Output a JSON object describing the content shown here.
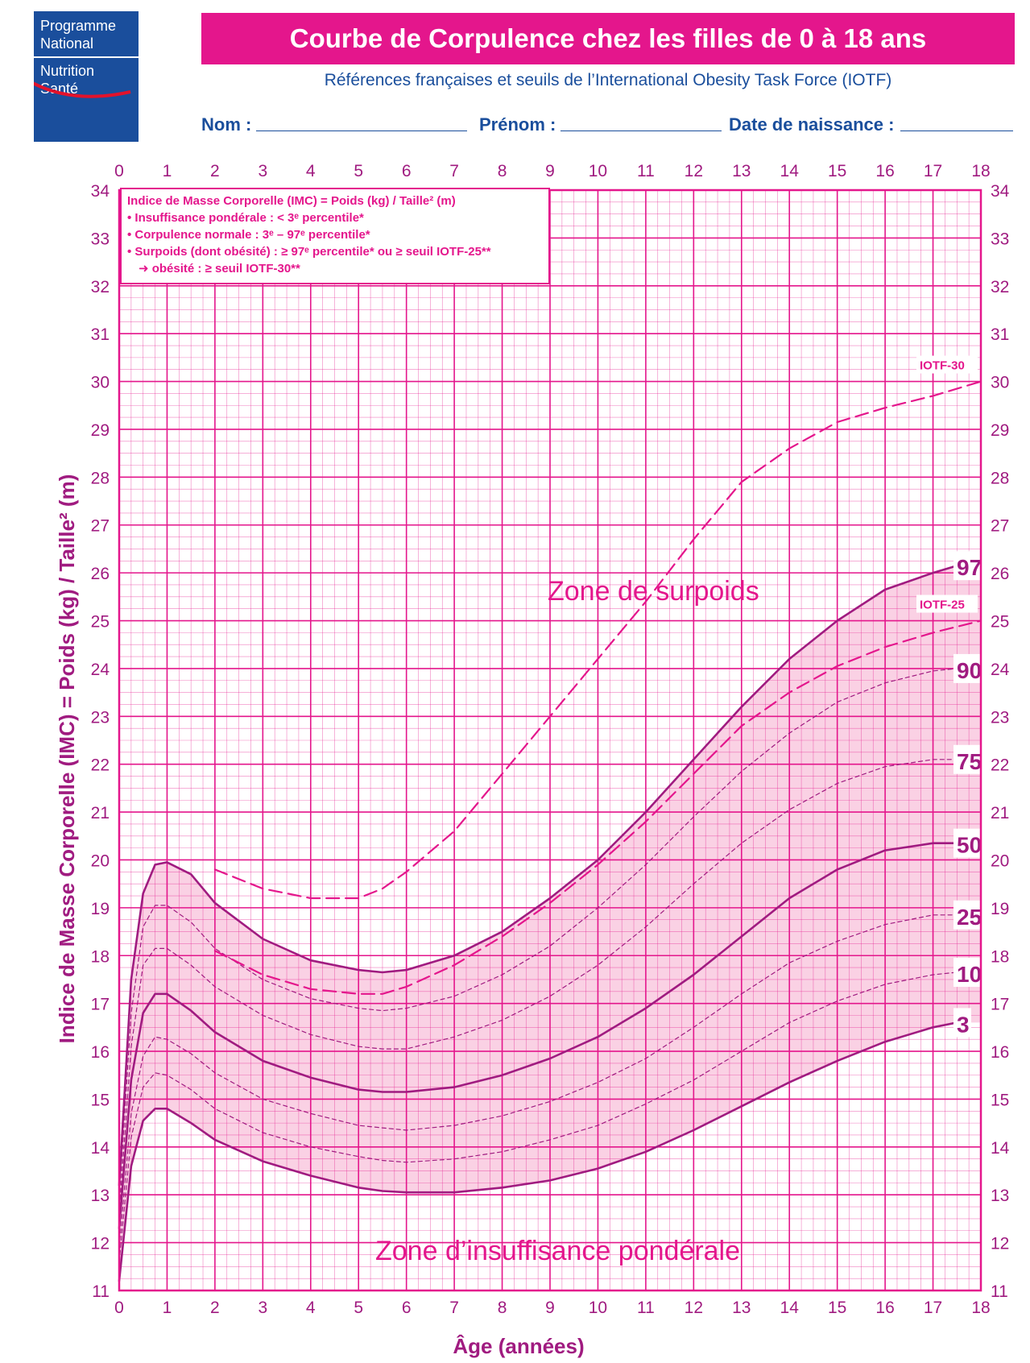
{
  "logo": {
    "line1": "Programme",
    "line2": "National",
    "line3": "Nutrition",
    "line4": "Santé"
  },
  "header": {
    "title": "Courbe de Corpulence chez les filles de 0 à 18 ans",
    "subtitle": "Références françaises et seuils de l’International Obesity Task Force (IOTF)"
  },
  "form": {
    "nom_label": "Nom :",
    "prenom_label": "Prénom :",
    "naissance_label": "Date de naissance :"
  },
  "colors": {
    "pink": "#e4168c",
    "purple": "#a01b80",
    "fill": "#f9c9df",
    "navy": "#1a4e9c"
  },
  "chart_data": {
    "type": "line",
    "ylabel": "Indice de Masse Corporelle (IMC) = Poids (kg) / Taille² (m)",
    "xlabel": "Âge (années)",
    "xlim": [
      0,
      18
    ],
    "ylim": [
      11,
      34
    ],
    "x_ticks": [
      0,
      1,
      2,
      3,
      4,
      5,
      6,
      7,
      8,
      9,
      10,
      11,
      12,
      13,
      14,
      15,
      16,
      17,
      18
    ],
    "y_ticks": [
      11,
      12,
      13,
      14,
      15,
      16,
      17,
      18,
      19,
      20,
      21,
      22,
      23,
      24,
      25,
      26,
      27,
      28,
      29,
      30,
      31,
      32,
      33,
      34
    ],
    "grid": true,
    "legend_box": {
      "line1": "Indice de Masse Corporelle (IMC) = Poids (kg) / Taille² (m)",
      "line2": "• Insuffisance pondérale : < 3ᵉ percentile*",
      "line3": "• Corpulence normale : 3ᵉ – 97ᵉ percentile*",
      "line4": "• Surpoids (dont obésité) : ≥ 97ᵉ percentile* ou ≥ seuil IOTF-25**",
      "line5": "➜ obésité : ≥ seuil IOTF-30**"
    },
    "annotations": {
      "surpoids": "Zone de surpoids",
      "insuffisance": "Zone d’insuffisance pondérale"
    },
    "x": [
      0,
      0.25,
      0.5,
      0.75,
      1,
      1.5,
      2,
      3,
      4,
      5,
      5.5,
      6,
      7,
      8,
      9,
      10,
      11,
      12,
      13,
      14,
      15,
      16,
      17,
      17.5
    ],
    "series": [
      {
        "name": "97",
        "style": "solid",
        "values": [
          13.2,
          17.5,
          19.3,
          19.9,
          19.95,
          19.7,
          19.1,
          18.35,
          17.9,
          17.7,
          17.65,
          17.7,
          18.0,
          18.5,
          19.2,
          20.0,
          21.0,
          22.1,
          23.2,
          24.2,
          25.0,
          25.65,
          26.0,
          26.15
        ]
      },
      {
        "name": "90",
        "style": "dashed",
        "values": [
          12.9,
          16.8,
          18.6,
          19.05,
          19.05,
          18.7,
          18.15,
          17.5,
          17.1,
          16.9,
          16.85,
          16.9,
          17.15,
          17.6,
          18.2,
          19.0,
          19.9,
          20.9,
          21.85,
          22.65,
          23.3,
          23.7,
          23.95,
          24.0
        ]
      },
      {
        "name": "75",
        "style": "dashed",
        "values": [
          12.6,
          16.1,
          17.8,
          18.15,
          18.15,
          17.8,
          17.35,
          16.75,
          16.35,
          16.1,
          16.05,
          16.05,
          16.3,
          16.65,
          17.15,
          17.8,
          18.6,
          19.5,
          20.35,
          21.05,
          21.6,
          21.95,
          22.1,
          22.1
        ]
      },
      {
        "name": "50",
        "style": "solid",
        "values": [
          12.3,
          15.4,
          16.8,
          17.2,
          17.2,
          16.85,
          16.4,
          15.8,
          15.45,
          15.2,
          15.15,
          15.15,
          15.25,
          15.5,
          15.85,
          16.3,
          16.9,
          17.6,
          18.4,
          19.2,
          19.8,
          20.2,
          20.35,
          20.35
        ]
      },
      {
        "name": "25",
        "style": "dashed",
        "values": [
          11.9,
          14.7,
          15.9,
          16.3,
          16.25,
          15.95,
          15.55,
          15.0,
          14.7,
          14.45,
          14.4,
          14.35,
          14.45,
          14.65,
          14.95,
          15.35,
          15.85,
          16.5,
          17.2,
          17.85,
          18.3,
          18.65,
          18.85,
          18.85
        ]
      },
      {
        "name": "10",
        "style": "dashed",
        "values": [
          11.6,
          14.2,
          15.25,
          15.55,
          15.5,
          15.2,
          14.8,
          14.3,
          14.0,
          13.8,
          13.72,
          13.68,
          13.75,
          13.9,
          14.15,
          14.45,
          14.9,
          15.4,
          16.0,
          16.6,
          17.05,
          17.4,
          17.6,
          17.65
        ]
      },
      {
        "name": "3",
        "style": "solid",
        "values": [
          11.2,
          13.6,
          14.55,
          14.8,
          14.8,
          14.5,
          14.15,
          13.7,
          13.4,
          13.15,
          13.08,
          13.05,
          13.05,
          13.15,
          13.3,
          13.55,
          13.9,
          14.35,
          14.85,
          15.35,
          15.8,
          16.2,
          16.5,
          16.6
        ]
      },
      {
        "name": "IOTF-30",
        "style": "dashed-long",
        "x": [
          2,
          3,
          4,
          5,
          5.5,
          6,
          7,
          8,
          9,
          10,
          11,
          12,
          13,
          14,
          15,
          16,
          17,
          18
        ],
        "values": [
          19.8,
          19.4,
          19.2,
          19.2,
          19.4,
          19.75,
          20.6,
          21.8,
          23.0,
          24.2,
          25.4,
          26.7,
          27.9,
          28.6,
          29.15,
          29.45,
          29.7,
          30.0
        ]
      },
      {
        "name": "IOTF-25",
        "style": "dashed-long",
        "x": [
          2,
          3,
          4,
          5,
          5.5,
          6,
          7,
          8,
          9,
          10,
          11,
          12,
          13,
          14,
          15,
          16,
          17,
          18
        ],
        "values": [
          18.1,
          17.6,
          17.3,
          17.2,
          17.2,
          17.35,
          17.8,
          18.4,
          19.1,
          19.9,
          20.8,
          21.8,
          22.8,
          23.5,
          24.05,
          24.45,
          24.75,
          25.0
        ]
      }
    ]
  }
}
